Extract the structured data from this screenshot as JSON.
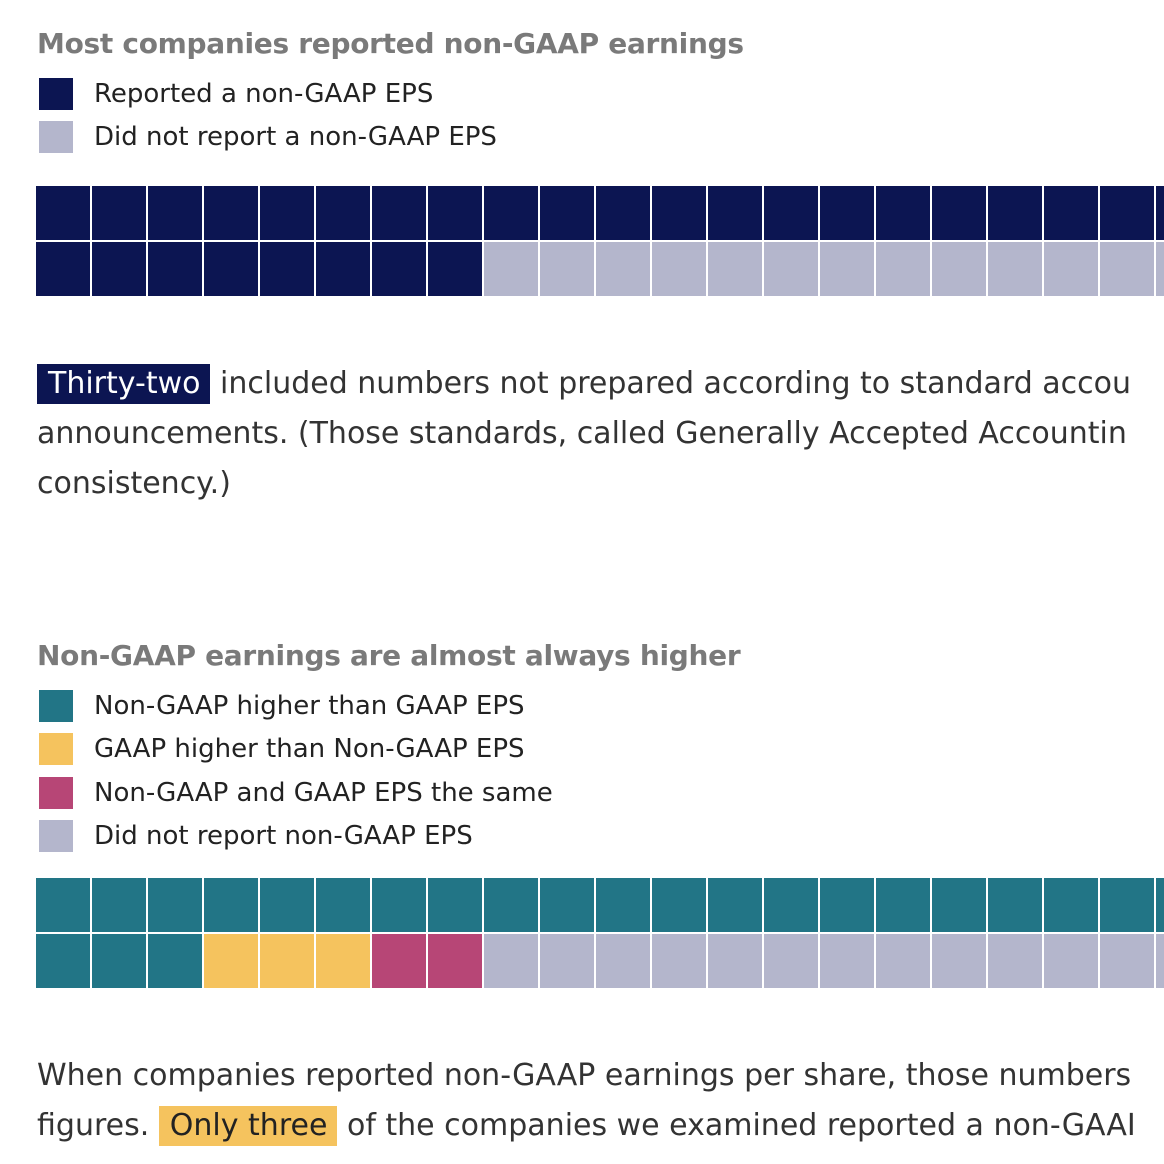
{
  "charts": [
    {
      "title": "Most companies reported non-GAAP earnings",
      "legend": [
        {
          "label": "Reported a non-GAAP EPS",
          "color": "#0c1552"
        },
        {
          "label": "Did not report a non-GAAP EPS",
          "color": "#b4b6cc"
        }
      ]
    },
    {
      "title": "Non-GAAP earnings are almost always higher",
      "legend": [
        {
          "label": "Non-GAAP higher than GAAP EPS",
          "color": "#227586"
        },
        {
          "label": "GAAP higher than Non-GAAP EPS",
          "color": "#f5c35e"
        },
        {
          "label": "Non-GAAP and GAAP EPS the same",
          "color": "#b74676"
        },
        {
          "label": "Did not report non-GAAP EPS",
          "color": "#b4b6cc"
        }
      ]
    }
  ],
  "paragraphs": {
    "p1": {
      "highlight": "Thirty-two",
      "line1_rest": " included numbers not prepared according to standard accou",
      "line2": "announcements. (Those standards, called Generally Accepted Accountin",
      "line3": "consistency.)"
    },
    "p2": {
      "line1": "When companies reported non-GAAP earnings per share, those numbers",
      "line2_pre": "figures. ",
      "highlight": "Only three",
      "line2_post": " of the companies we examined reported a non-GAAI"
    }
  },
  "chart_data": [
    {
      "type": "waffle",
      "title": "Most companies reported non-GAAP earnings",
      "rows": 2,
      "cells_fill_row_first": true,
      "categories": [
        "Reported a non-GAAP EPS",
        "Did not report a non-GAAP EPS"
      ],
      "colors": [
        "#0c1552",
        "#b4b6cc"
      ],
      "visible_counts": [
        29,
        13
      ],
      "note": "grid continues past right edge of view"
    },
    {
      "type": "waffle",
      "title": "Non-GAAP earnings are almost always higher",
      "rows": 2,
      "cells_fill_row_first": true,
      "categories": [
        "Non-GAAP higher than GAAP EPS",
        "GAAP higher than Non-GAAP EPS",
        "Non-GAAP and GAAP EPS the same",
        "Did not report non-GAAP EPS"
      ],
      "colors": [
        "#227586",
        "#f5c35e",
        "#b74676",
        "#b4b6cc"
      ],
      "visible_counts": [
        24,
        3,
        2,
        13
      ]
    }
  ]
}
